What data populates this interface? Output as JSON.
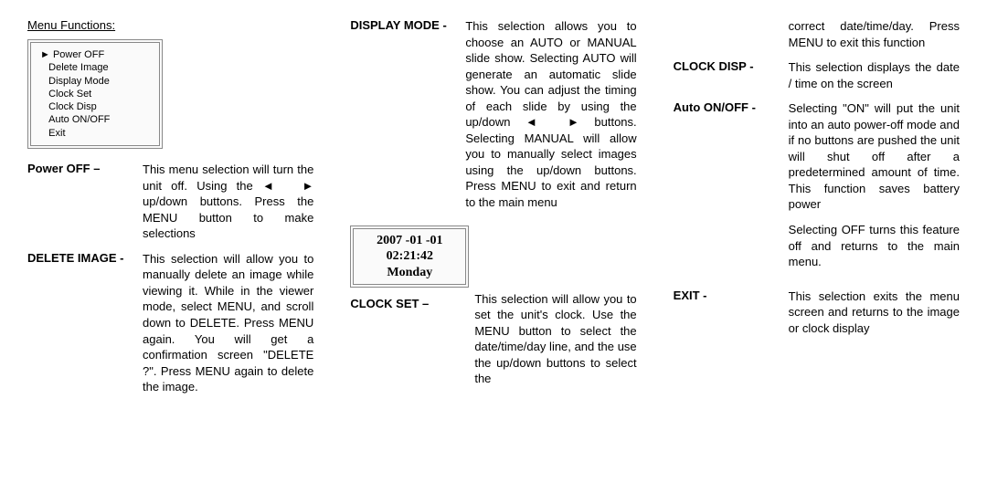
{
  "colors": {
    "bg": "#ffffff",
    "text": "#000000",
    "boxBorder": "#888888",
    "boxBg": "#fafafa"
  },
  "glyphs": {
    "triRight": "►",
    "triLeft": "◄"
  },
  "title": "Menu Functions:",
  "menuBox": {
    "pointerIndex": 0,
    "items": [
      "Power OFF",
      "Delete Image",
      "Display Mode",
      "Clock Set",
      "Clock Disp",
      "Auto ON/OFF",
      "Exit"
    ]
  },
  "clockBox": {
    "date": "2007 -01 -01",
    "time": "02:21:42",
    "day": "Monday"
  },
  "entries": {
    "powerOff": {
      "label": "Power OFF –",
      "body_a": "This menu selection will turn the unit off. Using the ",
      "body_b": " up/down buttons. Press the MENU button to make selections"
    },
    "deleteImage": {
      "label": "DELETE IMAGE -",
      "body": "This selection will allow you to manually delete an image while viewing it.  While in the viewer mode, select MENU, and scroll down to DELETE. Press MENU again.  You will get a confirmation screen \"DELETE ?\". Press MENU again to delete the image."
    },
    "displayMode": {
      "label": "DISPLAY MODE -",
      "body_a": "This selection allows you to choose an AUTO or MANUAL slide show. Selecting AUTO will generate an automatic slide show.  You can adjust the timing of each slide by using the up/down ",
      "body_b": " buttons. Selecting MANUAL will allow you to manually select images using the up/down buttons. Press MENU to exit and return to the main menu"
    },
    "clockSet": {
      "label": "CLOCK SET –",
      "body": "This selection will allow you to set the unit's clock. Use the MENU button to select the date/time/day line, and the use the up/down buttons  to select the"
    },
    "col3top": "correct date/time/day. Press MENU to exit this function",
    "clockDisp": {
      "label": "CLOCK DISP -",
      "body": "This selection displays the date / time on the screen"
    },
    "autoOnOff": {
      "label": "Auto ON/OFF -",
      "body1": "Selecting \"ON\" will put the unit into an auto power-off mode and if no buttons are pushed the unit will shut off after a predetermined amount of time.  This function saves battery power",
      "body2": "Selecting OFF turns this feature off and returns to the main menu."
    },
    "exit": {
      "label": "EXIT -",
      "body": "This selection exits the menu screen and returns to the image or clock display"
    }
  }
}
